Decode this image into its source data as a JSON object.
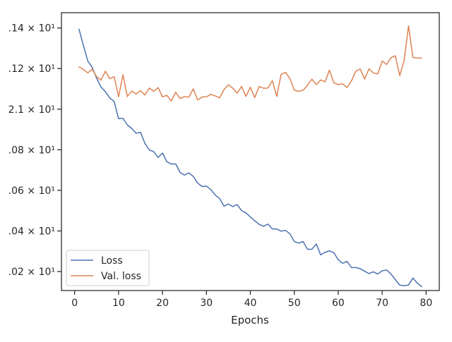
{
  "chart_data": {
    "type": "line",
    "title": "",
    "xlabel": "Epochs",
    "ylabel": "",
    "xlim": [
      -3,
      83
    ],
    "ylim": [
      20.1066,
      21.4752
    ],
    "grid": false,
    "legend_position": "lower-left",
    "x_ticks": [
      0,
      10,
      20,
      30,
      40,
      50,
      60,
      70,
      80
    ],
    "x_tick_labels": [
      "0",
      "10",
      "20",
      "30",
      "40",
      "50",
      "60",
      "70",
      "80"
    ],
    "y_ticks": [
      20.2,
      20.4,
      20.6,
      20.8,
      21.0,
      21.2,
      21.4
    ],
    "y_tick_labels": [
      ".02 × 10¹",
      ".04 × 10¹",
      ".06 × 10¹",
      ".08 × 10¹",
      "2.1 × 10¹",
      ".12 × 10¹",
      ".14 × 10¹"
    ],
    "x": [
      1,
      2,
      3,
      4,
      5,
      6,
      7,
      8,
      9,
      10,
      11,
      12,
      13,
      14,
      15,
      16,
      17,
      18,
      19,
      20,
      21,
      22,
      23,
      24,
      25,
      26,
      27,
      28,
      29,
      30,
      31,
      32,
      33,
      34,
      35,
      36,
      37,
      38,
      39,
      40,
      41,
      42,
      43,
      44,
      45,
      46,
      47,
      48,
      49,
      50,
      51,
      52,
      53,
      54,
      55,
      56,
      57,
      58,
      59,
      60,
      61,
      62,
      63,
      64,
      65,
      66,
      67,
      68,
      69,
      70,
      71,
      72,
      73,
      74,
      75,
      76,
      77,
      78,
      79,
      80
    ],
    "series": [
      {
        "name": "Loss",
        "color": "#4c72b0",
        "values": [
          21.394,
          21.314,
          21.237,
          21.206,
          21.153,
          21.109,
          21.086,
          21.055,
          21.038,
          20.953,
          20.955,
          20.922,
          20.905,
          20.881,
          20.886,
          20.831,
          20.799,
          20.791,
          20.762,
          20.784,
          20.741,
          20.73,
          20.73,
          20.689,
          20.675,
          20.686,
          20.669,
          20.636,
          20.619,
          20.621,
          20.604,
          20.577,
          20.56,
          20.522,
          20.533,
          20.52,
          20.53,
          20.5,
          20.489,
          20.469,
          20.45,
          20.433,
          20.423,
          20.434,
          20.41,
          20.41,
          20.399,
          20.403,
          20.386,
          20.348,
          20.34,
          20.348,
          20.31,
          20.31,
          20.336,
          20.282,
          20.295,
          20.302,
          20.293,
          20.258,
          20.241,
          20.25,
          20.22,
          20.22,
          20.214,
          20.202,
          20.19,
          20.199,
          20.188,
          20.204,
          20.208,
          20.188,
          20.16,
          20.133,
          20.13,
          20.134,
          20.168,
          20.143,
          20.126,
          null
        ]
      },
      {
        "name": "Val. loss",
        "color": "#dd8452",
        "values": [
          21.208,
          21.195,
          21.179,
          21.197,
          21.16,
          21.143,
          21.187,
          21.15,
          21.16,
          21.061,
          21.17,
          21.062,
          21.089,
          21.075,
          21.091,
          21.07,
          21.104,
          21.088,
          21.106,
          21.061,
          21.068,
          21.04,
          21.084,
          21.052,
          21.062,
          21.059,
          21.1,
          21.045,
          21.06,
          21.061,
          21.073,
          21.065,
          21.056,
          21.096,
          21.12,
          21.103,
          21.079,
          21.112,
          21.063,
          21.108,
          21.057,
          21.112,
          21.103,
          21.104,
          21.14,
          21.063,
          21.172,
          21.181,
          21.151,
          21.093,
          21.088,
          21.093,
          21.117,
          21.148,
          21.121,
          21.144,
          21.135,
          21.192,
          21.13,
          21.121,
          21.125,
          21.107,
          21.139,
          21.187,
          21.198,
          21.148,
          21.199,
          21.178,
          21.174,
          21.237,
          21.22,
          21.254,
          21.263,
          21.165,
          21.239,
          21.41,
          21.254,
          21.252,
          21.251,
          null
        ]
      }
    ]
  }
}
